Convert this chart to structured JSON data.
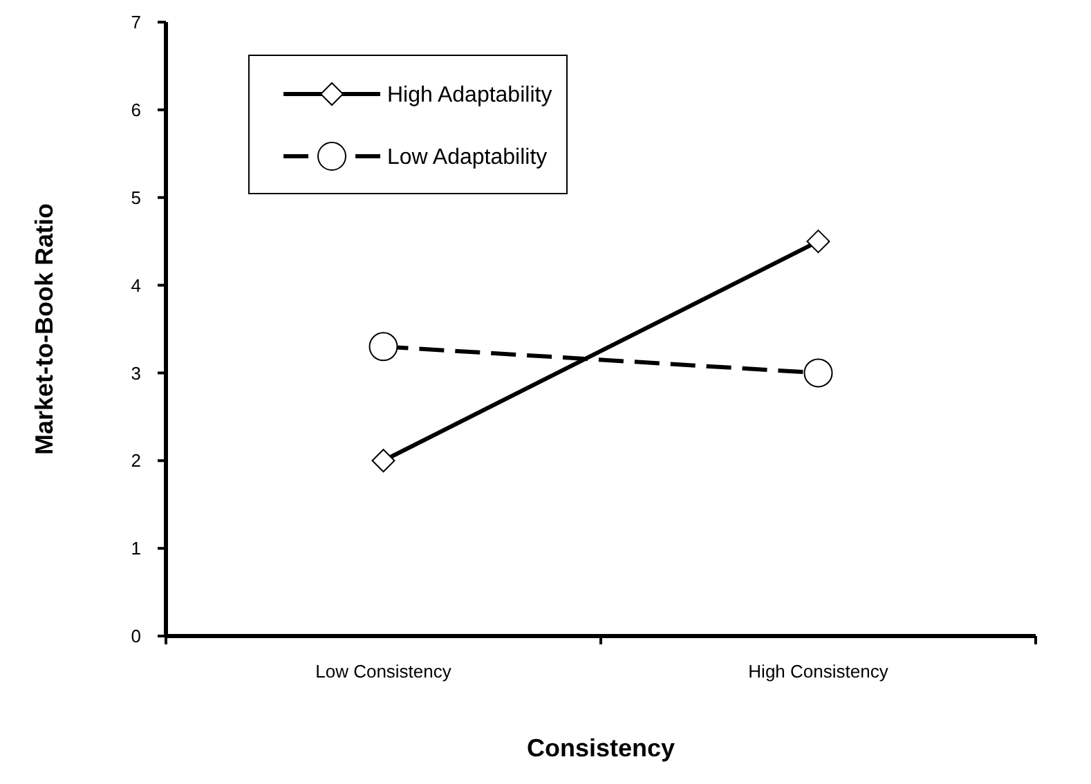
{
  "chart_data": {
    "type": "line",
    "xlabel": "Consistency",
    "ylabel": "Market-to-Book Ratio",
    "categories": [
      "Low Consistency",
      "High Consistency"
    ],
    "ylim": [
      0,
      7
    ],
    "yticks": [
      0,
      1,
      2,
      3,
      4,
      5,
      6,
      7
    ],
    "grid": false,
    "legend": "top left",
    "series": [
      {
        "name": "High Adaptability",
        "color": "#000000",
        "values": [
          2,
          4.5
        ],
        "marker": "diamond",
        "line_style": "solid"
      },
      {
        "name": "Low Adaptability",
        "color": "#000000",
        "values": [
          3.3,
          3.0
        ],
        "marker": "circle",
        "line_style": "dashed"
      }
    ]
  }
}
